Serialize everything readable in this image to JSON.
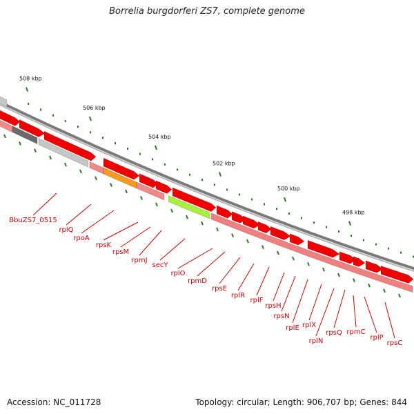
{
  "title": "Borrelia burgdorferi ZS7, complete genome",
  "accession": "Accession: NC_011728",
  "summary": "Topology: circular; Length: 906,707 bp; Genes: 844",
  "ticks": [
    "508 kbp",
    "506 kbp",
    "504 kbp",
    "502 kbp",
    "500 kbp",
    "498 kbp"
  ],
  "genes": [
    "BbuZS7_0515",
    "rplQ",
    "rpoA",
    "rpsK",
    "rpsM",
    "rpmJ",
    "secY",
    "rplO",
    "rpmD",
    "rpsE",
    "rplR",
    "rplF",
    "rpsH",
    "rpsN",
    "rplE",
    "rplX",
    "rplN",
    "rpsQ",
    "rpmC",
    "rplP",
    "rpsC"
  ],
  "colors": {
    "gene": "#ee0000",
    "rna_track": "#f08080",
    "label": "#cc0000",
    "tick": "#2a7a2a",
    "backbone": "#7a7a7a"
  }
}
